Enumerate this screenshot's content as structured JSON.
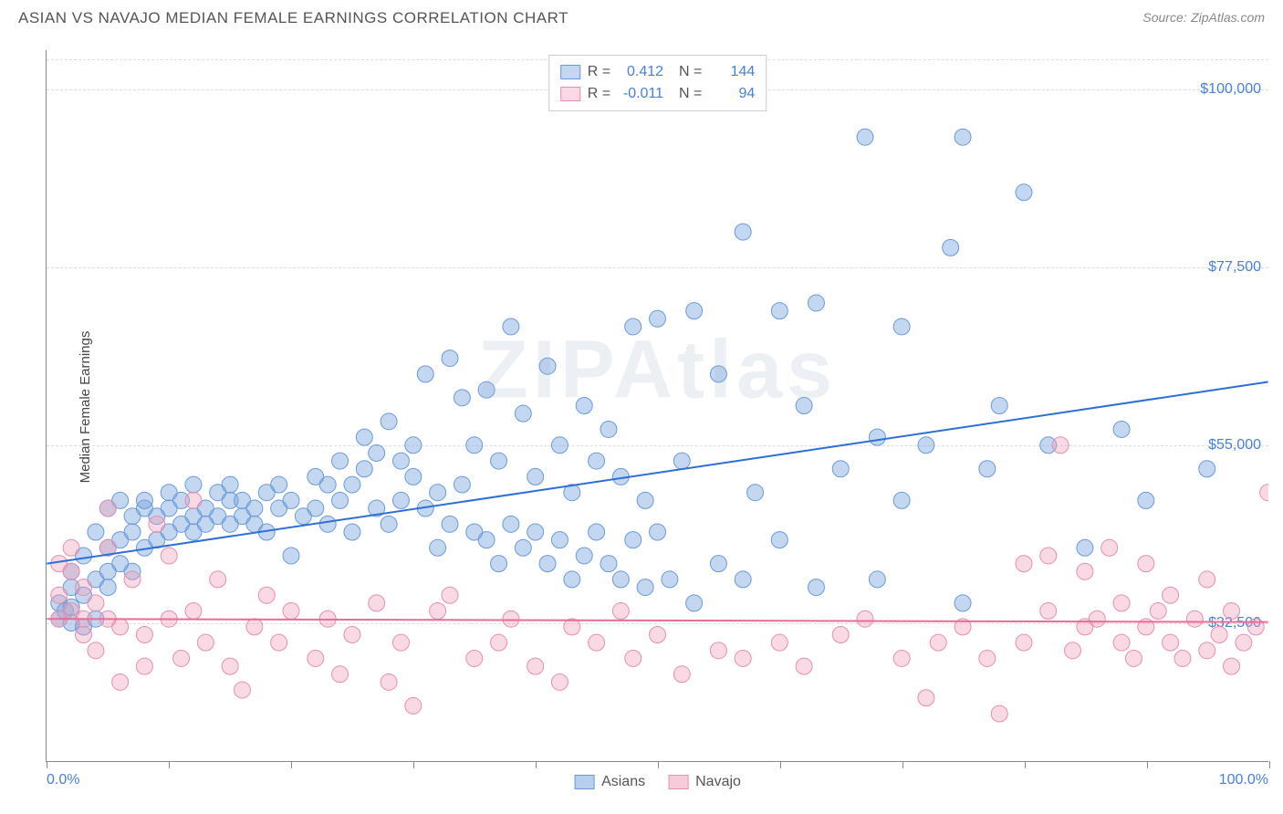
{
  "title": "ASIAN VS NAVAJO MEDIAN FEMALE EARNINGS CORRELATION CHART",
  "source_label": "Source:",
  "source_value": "ZipAtlas.com",
  "y_axis_label": "Median Female Earnings",
  "watermark": "ZIPAtlas",
  "chart": {
    "type": "scatter",
    "xlim": [
      0,
      100
    ],
    "ylim": [
      15000,
      105000
    ],
    "y_ticks": [
      {
        "value": 32500,
        "label": "$32,500"
      },
      {
        "value": 55000,
        "label": "$55,000"
      },
      {
        "value": 77500,
        "label": "$77,500"
      },
      {
        "value": 100000,
        "label": "$100,000"
      }
    ],
    "x_ticks_major": [
      0,
      10,
      20,
      30,
      40,
      50,
      60,
      70,
      80,
      90,
      100
    ],
    "x_tick_labels": [
      {
        "pos": 0,
        "label": "0.0%"
      },
      {
        "pos": 100,
        "label": "100.0%"
      }
    ],
    "grid_color": "#dddddd",
    "background_color": "#ffffff",
    "series": [
      {
        "name": "Asians",
        "marker_fill": "rgba(122,167,224,0.45)",
        "marker_stroke": "#6a9ad8",
        "marker_radius": 9,
        "R": "0.412",
        "N": "144",
        "regression": {
          "x1": 0,
          "y1": 40000,
          "x2": 100,
          "y2": 63000,
          "color": "#2e6fd6",
          "width": 2
        },
        "points": [
          [
            1,
            33000
          ],
          [
            1,
            35000
          ],
          [
            1.5,
            34000
          ],
          [
            2,
            34500
          ],
          [
            2,
            37000
          ],
          [
            2,
            39000
          ],
          [
            2,
            32500
          ],
          [
            3,
            36000
          ],
          [
            3,
            32000
          ],
          [
            3,
            41000
          ],
          [
            4,
            33000
          ],
          [
            4,
            38000
          ],
          [
            4,
            44000
          ],
          [
            5,
            37000
          ],
          [
            5,
            39000
          ],
          [
            5,
            42000
          ],
          [
            5,
            47000
          ],
          [
            6,
            40000
          ],
          [
            6,
            43000
          ],
          [
            6,
            48000
          ],
          [
            7,
            39000
          ],
          [
            7,
            44000
          ],
          [
            7,
            46000
          ],
          [
            8,
            42000
          ],
          [
            8,
            47000
          ],
          [
            8,
            48000
          ],
          [
            9,
            43000
          ],
          [
            9,
            46000
          ],
          [
            10,
            44000
          ],
          [
            10,
            47000
          ],
          [
            10,
            49000
          ],
          [
            11,
            45000
          ],
          [
            11,
            48000
          ],
          [
            12,
            44000
          ],
          [
            12,
            46000
          ],
          [
            12,
            50000
          ],
          [
            13,
            45000
          ],
          [
            13,
            47000
          ],
          [
            14,
            46000
          ],
          [
            14,
            49000
          ],
          [
            15,
            45000
          ],
          [
            15,
            48000
          ],
          [
            15,
            50000
          ],
          [
            16,
            46000
          ],
          [
            16,
            48000
          ],
          [
            17,
            45000
          ],
          [
            17,
            47000
          ],
          [
            18,
            44000
          ],
          [
            18,
            49000
          ],
          [
            19,
            47000
          ],
          [
            19,
            50000
          ],
          [
            20,
            41000
          ],
          [
            20,
            48000
          ],
          [
            21,
            46000
          ],
          [
            22,
            47000
          ],
          [
            22,
            51000
          ],
          [
            23,
            45000
          ],
          [
            23,
            50000
          ],
          [
            24,
            48000
          ],
          [
            24,
            53000
          ],
          [
            25,
            44000
          ],
          [
            25,
            50000
          ],
          [
            26,
            52000
          ],
          [
            26,
            56000
          ],
          [
            27,
            47000
          ],
          [
            27,
            54000
          ],
          [
            28,
            45000
          ],
          [
            28,
            58000
          ],
          [
            29,
            48000
          ],
          [
            29,
            53000
          ],
          [
            30,
            51000
          ],
          [
            30,
            55000
          ],
          [
            31,
            47000
          ],
          [
            31,
            64000
          ],
          [
            32,
            42000
          ],
          [
            32,
            49000
          ],
          [
            33,
            45000
          ],
          [
            33,
            66000
          ],
          [
            34,
            50000
          ],
          [
            34,
            61000
          ],
          [
            35,
            44000
          ],
          [
            35,
            55000
          ],
          [
            36,
            43000
          ],
          [
            36,
            62000
          ],
          [
            37,
            40000
          ],
          [
            37,
            53000
          ],
          [
            38,
            45000
          ],
          [
            38,
            70000
          ],
          [
            39,
            42000
          ],
          [
            39,
            59000
          ],
          [
            40,
            44000
          ],
          [
            40,
            51000
          ],
          [
            41,
            40000
          ],
          [
            41,
            65000
          ],
          [
            42,
            43000
          ],
          [
            42,
            55000
          ],
          [
            43,
            38000
          ],
          [
            43,
            49000
          ],
          [
            44,
            41000
          ],
          [
            44,
            60000
          ],
          [
            45,
            44000
          ],
          [
            45,
            53000
          ],
          [
            46,
            40000
          ],
          [
            46,
            57000
          ],
          [
            47,
            38000
          ],
          [
            47,
            51000
          ],
          [
            48,
            43000
          ],
          [
            48,
            70000
          ],
          [
            49,
            37000
          ],
          [
            49,
            48000
          ],
          [
            50,
            44000
          ],
          [
            50,
            71000
          ],
          [
            51,
            38000
          ],
          [
            52,
            53000
          ],
          [
            53,
            35000
          ],
          [
            53,
            72000
          ],
          [
            55,
            40000
          ],
          [
            55,
            64000
          ],
          [
            57,
            38000
          ],
          [
            57,
            82000
          ],
          [
            58,
            49000
          ],
          [
            60,
            43000
          ],
          [
            60,
            72000
          ],
          [
            62,
            60000
          ],
          [
            63,
            37000
          ],
          [
            63,
            73000
          ],
          [
            65,
            52000
          ],
          [
            67,
            94000
          ],
          [
            68,
            38000
          ],
          [
            68,
            56000
          ],
          [
            70,
            48000
          ],
          [
            70,
            70000
          ],
          [
            72,
            55000
          ],
          [
            74,
            80000
          ],
          [
            75,
            35000
          ],
          [
            75,
            94000
          ],
          [
            77,
            52000
          ],
          [
            78,
            60000
          ],
          [
            80,
            87000
          ],
          [
            82,
            55000
          ],
          [
            85,
            42000
          ],
          [
            88,
            57000
          ],
          [
            90,
            48000
          ],
          [
            95,
            52000
          ]
        ]
      },
      {
        "name": "Navajo",
        "marker_fill": "rgba(240,160,185,0.40)",
        "marker_stroke": "#e58fb0",
        "marker_radius": 9,
        "R": "-0.011",
        "N": "94",
        "regression": {
          "x1": 0,
          "y1": 33000,
          "x2": 100,
          "y2": 32600,
          "color": "#e86b98",
          "width": 2
        },
        "points": [
          [
            1,
            33000
          ],
          [
            1,
            36000
          ],
          [
            1,
            40000
          ],
          [
            2,
            34000
          ],
          [
            2,
            39000
          ],
          [
            2,
            42000
          ],
          [
            3,
            33000
          ],
          [
            3,
            37000
          ],
          [
            3,
            31000
          ],
          [
            4,
            35000
          ],
          [
            4,
            29000
          ],
          [
            5,
            42000
          ],
          [
            5,
            47000
          ],
          [
            5,
            33000
          ],
          [
            6,
            32000
          ],
          [
            6,
            25000
          ],
          [
            7,
            38000
          ],
          [
            8,
            31000
          ],
          [
            8,
            27000
          ],
          [
            9,
            45000
          ],
          [
            10,
            33000
          ],
          [
            10,
            41000
          ],
          [
            11,
            28000
          ],
          [
            12,
            34000
          ],
          [
            12,
            48000
          ],
          [
            13,
            30000
          ],
          [
            14,
            38000
          ],
          [
            15,
            27000
          ],
          [
            16,
            24000
          ],
          [
            17,
            32000
          ],
          [
            18,
            36000
          ],
          [
            19,
            30000
          ],
          [
            20,
            34000
          ],
          [
            22,
            28000
          ],
          [
            23,
            33000
          ],
          [
            24,
            26000
          ],
          [
            25,
            31000
          ],
          [
            27,
            35000
          ],
          [
            28,
            25000
          ],
          [
            29,
            30000
          ],
          [
            30,
            22000
          ],
          [
            32,
            34000
          ],
          [
            33,
            36000
          ],
          [
            35,
            28000
          ],
          [
            37,
            30000
          ],
          [
            38,
            33000
          ],
          [
            40,
            27000
          ],
          [
            42,
            25000
          ],
          [
            43,
            32000
          ],
          [
            45,
            30000
          ],
          [
            47,
            34000
          ],
          [
            48,
            28000
          ],
          [
            50,
            31000
          ],
          [
            52,
            26000
          ],
          [
            55,
            29000
          ],
          [
            57,
            28000
          ],
          [
            60,
            30000
          ],
          [
            62,
            27000
          ],
          [
            65,
            31000
          ],
          [
            67,
            33000
          ],
          [
            70,
            28000
          ],
          [
            72,
            23000
          ],
          [
            73,
            30000
          ],
          [
            75,
            32000
          ],
          [
            77,
            28000
          ],
          [
            78,
            21000
          ],
          [
            80,
            40000
          ],
          [
            80,
            30000
          ],
          [
            82,
            34000
          ],
          [
            82,
            41000
          ],
          [
            83,
            55000
          ],
          [
            84,
            29000
          ],
          [
            85,
            32000
          ],
          [
            85,
            39000
          ],
          [
            86,
            33000
          ],
          [
            87,
            42000
          ],
          [
            88,
            30000
          ],
          [
            88,
            35000
          ],
          [
            89,
            28000
          ],
          [
            90,
            40000
          ],
          [
            90,
            32000
          ],
          [
            91,
            34000
          ],
          [
            92,
            30000
          ],
          [
            92,
            36000
          ],
          [
            93,
            28000
          ],
          [
            94,
            33000
          ],
          [
            95,
            38000
          ],
          [
            95,
            29000
          ],
          [
            96,
            31000
          ],
          [
            97,
            34000
          ],
          [
            97,
            27000
          ],
          [
            98,
            30000
          ],
          [
            99,
            32000
          ],
          [
            100,
            49000
          ]
        ]
      }
    ],
    "legend_top_swatch_labels": [
      "R =",
      "N ="
    ],
    "legend_bottom": [
      {
        "label": "Asians",
        "fill": "rgba(122,167,224,0.55)",
        "stroke": "#6a9ad8"
      },
      {
        "label": "Navajo",
        "fill": "rgba(240,160,185,0.55)",
        "stroke": "#e58fb0"
      }
    ]
  }
}
